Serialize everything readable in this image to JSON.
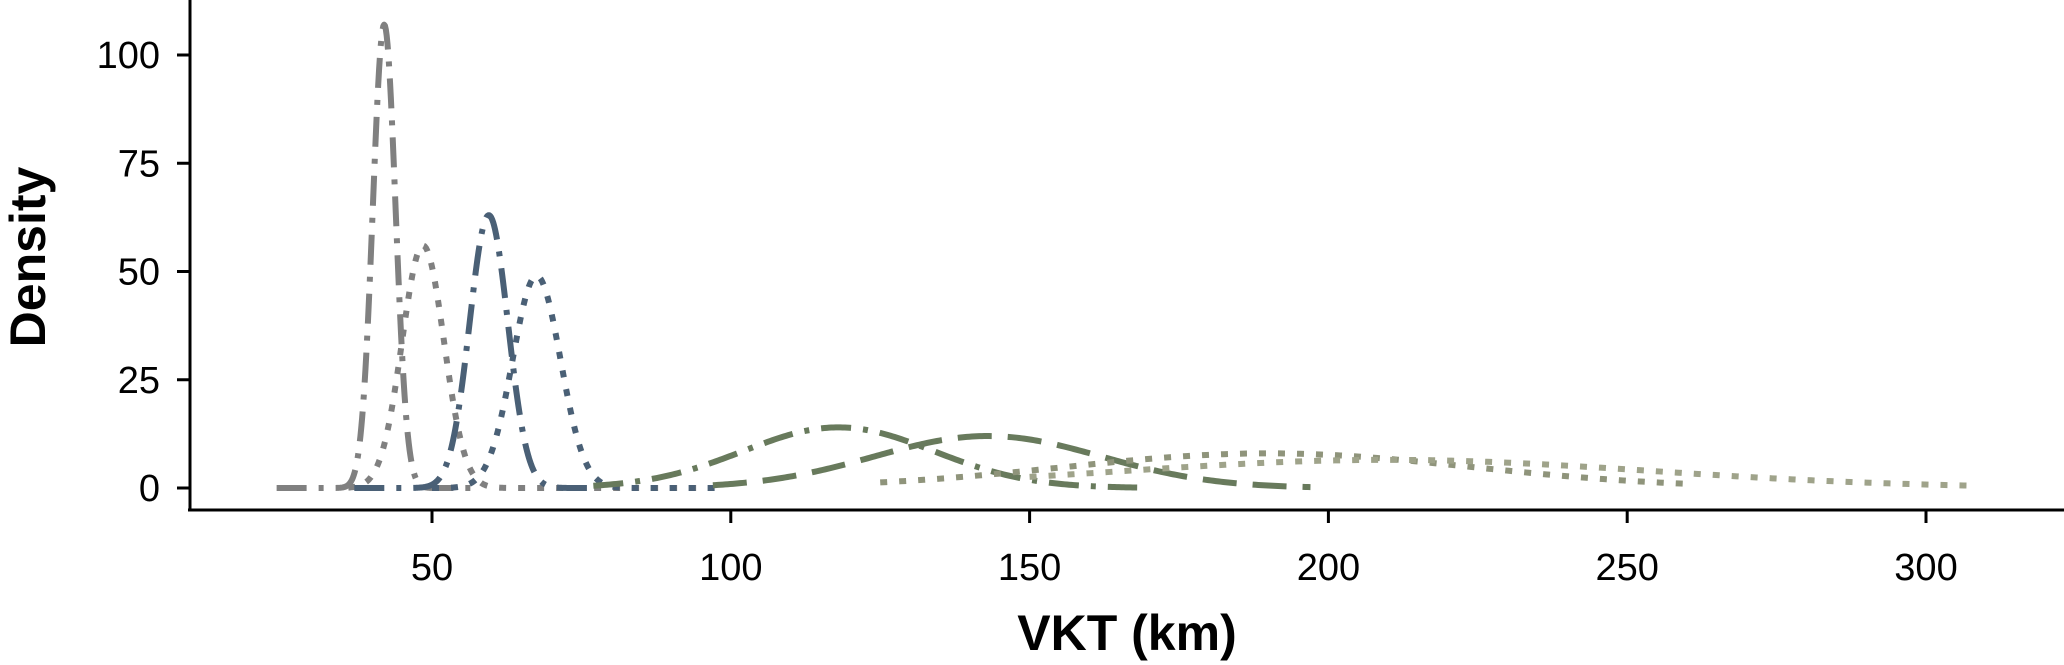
{
  "chart_data": {
    "type": "line",
    "title": "",
    "xlabel": "VKT (km)",
    "ylabel": "Density",
    "xlim": [
      0,
      320
    ],
    "ylim": [
      -5,
      110
    ],
    "xticks": [
      50,
      100,
      150,
      200,
      250,
      300
    ],
    "yticks": [
      0,
      25,
      50,
      75,
      100
    ],
    "grid": false,
    "legend": "none",
    "series": [
      {
        "color": "#808080",
        "dash": "dashdot",
        "mean": 42,
        "sd": 1.9,
        "peak": 107,
        "range": [
          24,
          58
        ]
      },
      {
        "color": "#808080",
        "dash": "dotted",
        "mean": 48.5,
        "sd": 3.5,
        "peak": 56,
        "range": [
          36,
          96
        ]
      },
      {
        "color": "#4a6076",
        "dash": "dashdot",
        "mean": 59.5,
        "sd": 3.2,
        "peak": 63,
        "range": [
          37,
          76
        ]
      },
      {
        "color": "#4a6076",
        "dash": "dotted",
        "mean": 67.5,
        "sd": 4.0,
        "peak": 49,
        "range": [
          50,
          98
        ]
      },
      {
        "color": "#687a5c",
        "dash": "dashdot",
        "mean": 118,
        "sd": 16,
        "peak": 14,
        "range": [
          77,
          168
        ]
      },
      {
        "color": "#687a5c",
        "dash": "dashed",
        "mean": 143,
        "sd": 19,
        "peak": 12,
        "range": [
          97,
          197
        ]
      },
      {
        "color": "#8f947b",
        "dash": "dotted",
        "mean": 190,
        "sd": 34,
        "peak": 8,
        "range": [
          125,
          260
        ]
      },
      {
        "color": "#9fa38a",
        "dash": "dotted",
        "mean": 210,
        "sd": 44,
        "peak": 6.5,
        "range": [
          150,
          307
        ]
      }
    ]
  }
}
